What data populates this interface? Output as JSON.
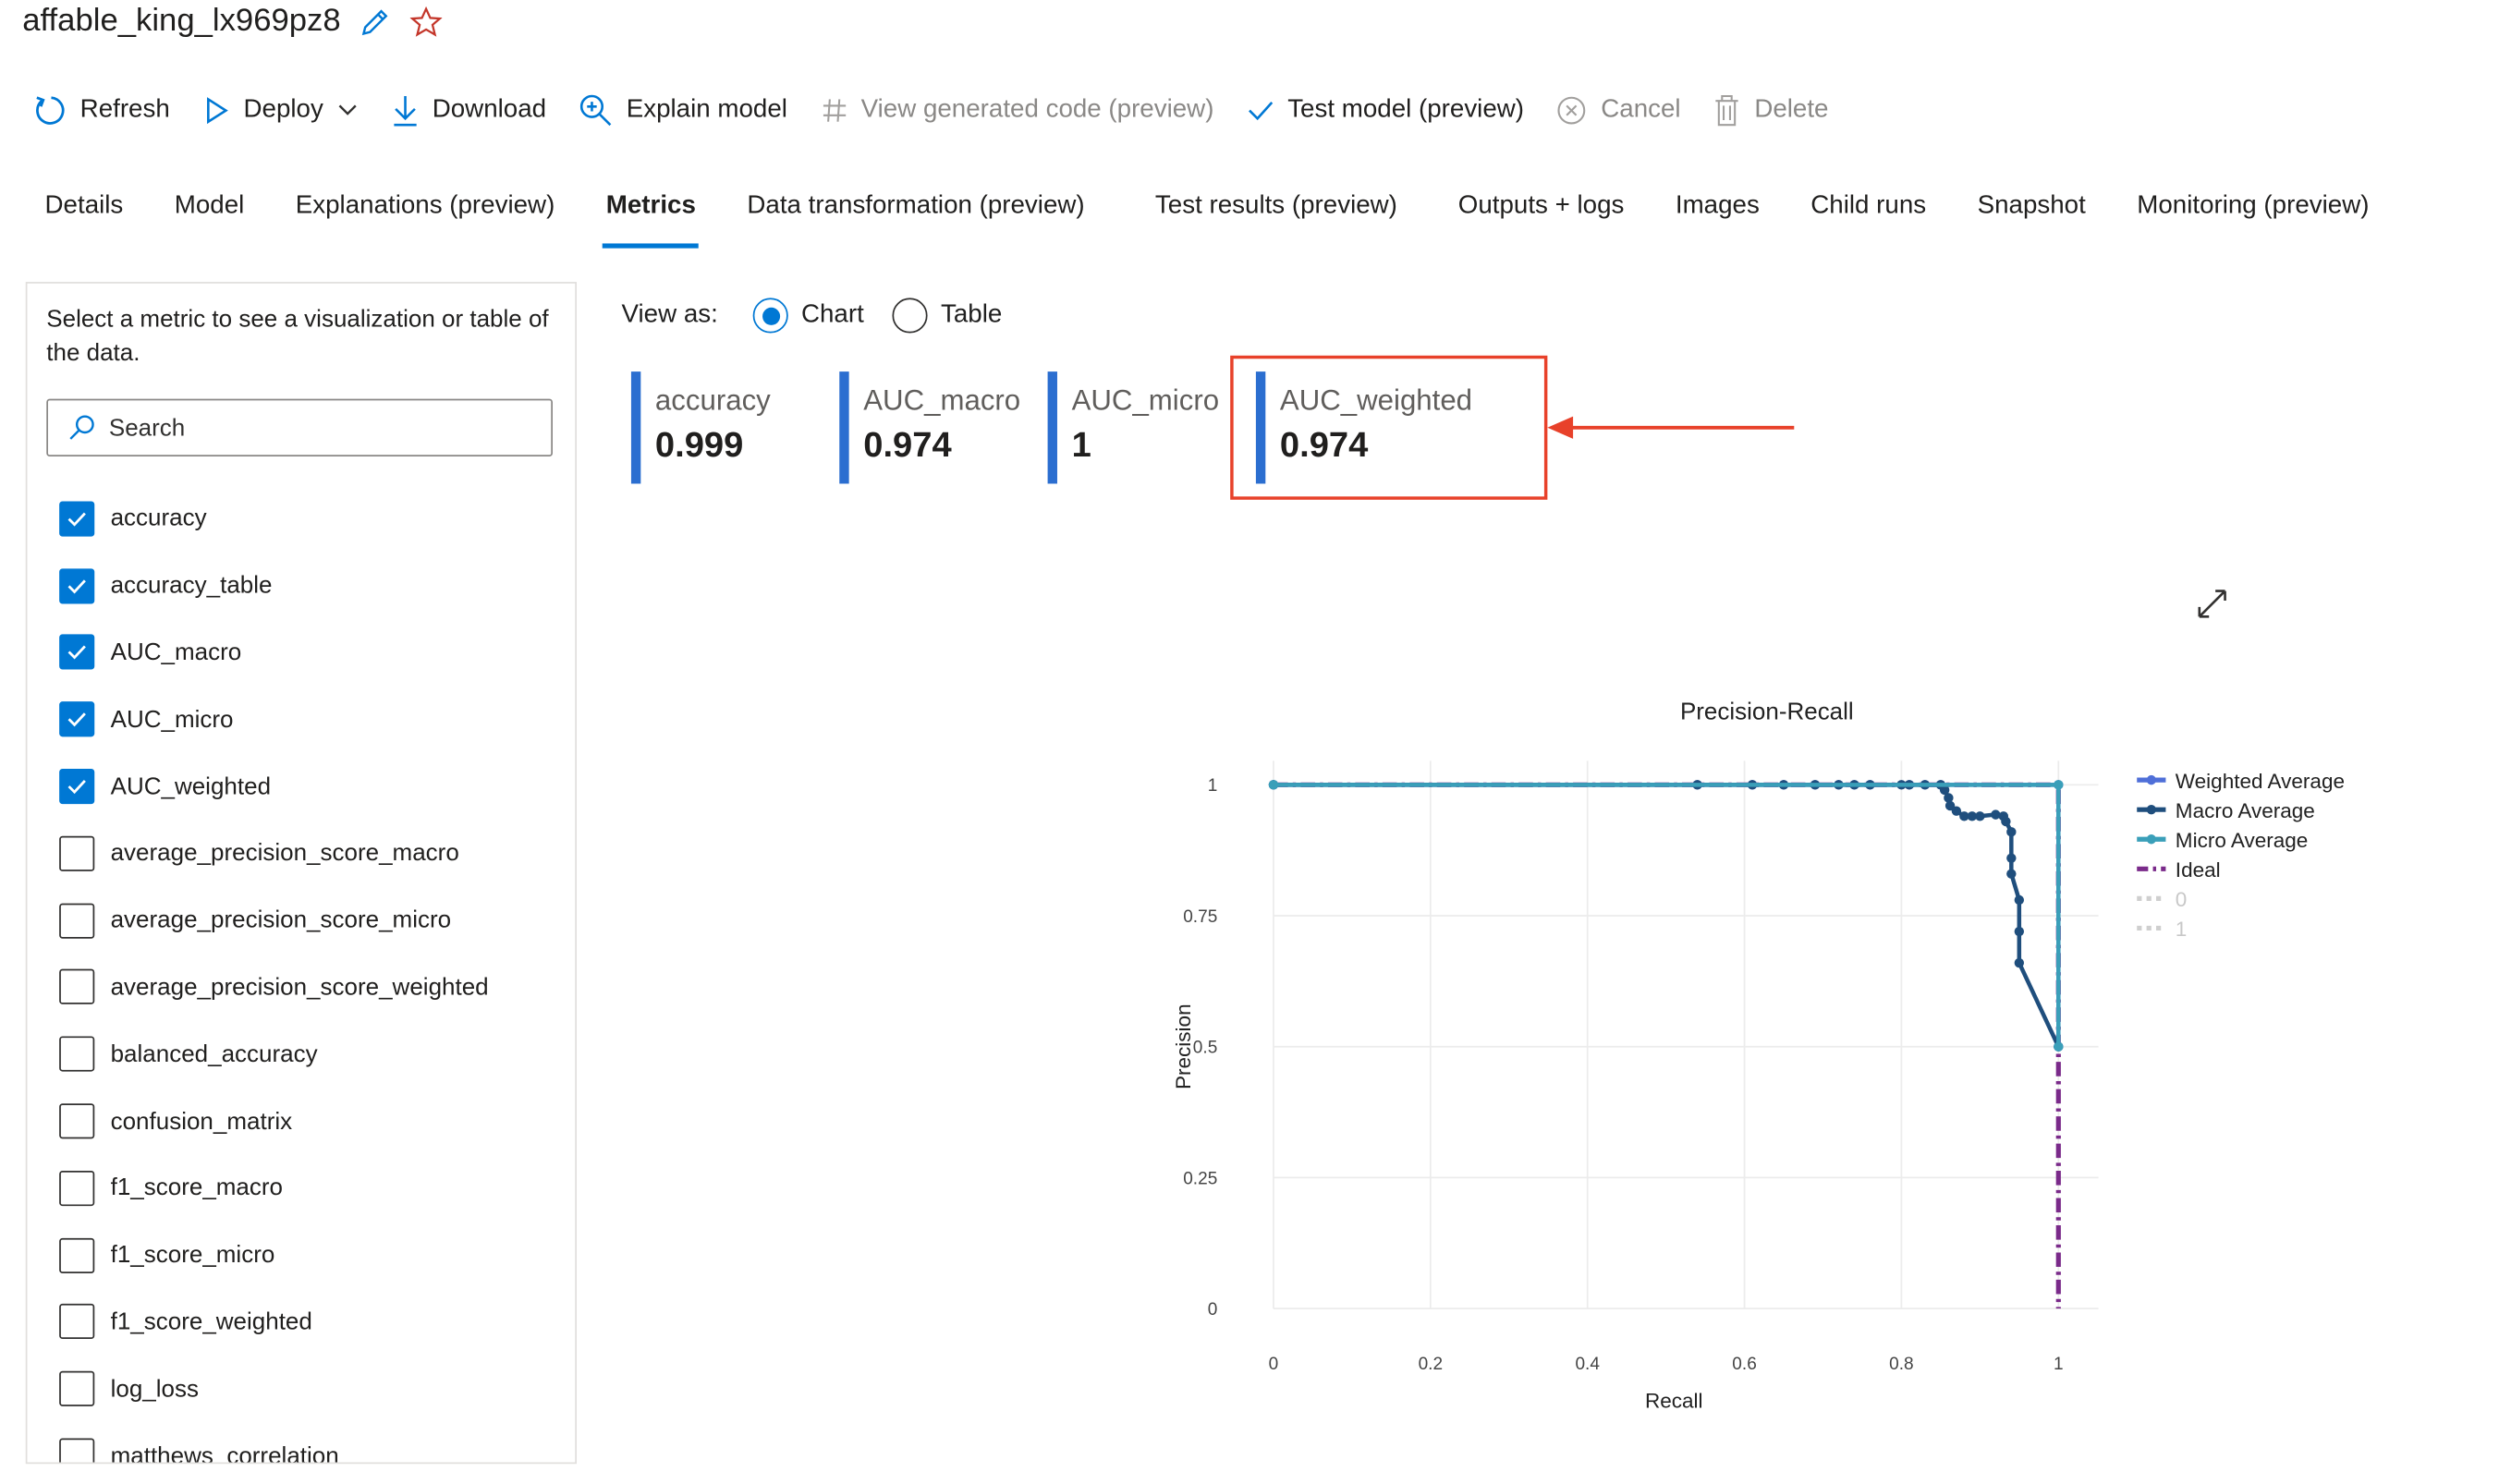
{
  "header": {
    "title": "affable_king_lx969pz8"
  },
  "toolbar": {
    "items": [
      {
        "label": "Refresh",
        "icon": "refresh-icon",
        "enabled": true
      },
      {
        "label": "Deploy",
        "icon": "play-icon",
        "enabled": true
      },
      {
        "label": "Download",
        "icon": "download-icon",
        "enabled": true
      },
      {
        "label": "Explain model",
        "icon": "zoom-icon",
        "enabled": true
      },
      {
        "label": "View generated code (preview)",
        "icon": "hash-icon",
        "enabled": false
      },
      {
        "label": "Test model (preview)",
        "icon": "check-icon",
        "enabled": true
      },
      {
        "label": "Cancel",
        "icon": "cancel-icon",
        "enabled": false
      },
      {
        "label": "Delete",
        "icon": "trash-icon",
        "enabled": false
      }
    ]
  },
  "tabs": [
    {
      "label": "Details"
    },
    {
      "label": "Model"
    },
    {
      "label": "Explanations (preview)"
    },
    {
      "label": "Metrics",
      "active": true
    },
    {
      "label": "Data transformation (preview)"
    },
    {
      "label": "Test results (preview)"
    },
    {
      "label": "Outputs + logs"
    },
    {
      "label": "Images"
    },
    {
      "label": "Child runs"
    },
    {
      "label": "Snapshot"
    },
    {
      "label": "Monitoring (preview)"
    }
  ],
  "sidebar": {
    "hint": "Select a metric to see a visualization or table of the data.",
    "search_placeholder": "Search",
    "metrics": [
      {
        "label": "accuracy",
        "checked": true
      },
      {
        "label": "accuracy_table",
        "checked": true
      },
      {
        "label": "AUC_macro",
        "checked": true
      },
      {
        "label": "AUC_micro",
        "checked": true
      },
      {
        "label": "AUC_weighted",
        "checked": true
      },
      {
        "label": "average_precision_score_macro",
        "checked": false
      },
      {
        "label": "average_precision_score_micro",
        "checked": false
      },
      {
        "label": "average_precision_score_weighted",
        "checked": false
      },
      {
        "label": "balanced_accuracy",
        "checked": false
      },
      {
        "label": "confusion_matrix",
        "checked": false
      },
      {
        "label": "f1_score_macro",
        "checked": false
      },
      {
        "label": "f1_score_micro",
        "checked": false
      },
      {
        "label": "f1_score_weighted",
        "checked": false
      },
      {
        "label": "log_loss",
        "checked": false
      },
      {
        "label": "matthews_correlation",
        "checked": false
      }
    ]
  },
  "view_as": {
    "label": "View as:",
    "options": [
      {
        "label": "Chart",
        "selected": true
      },
      {
        "label": "Table",
        "selected": false
      }
    ]
  },
  "metric_cards": [
    {
      "name": "accuracy",
      "value": "0.999"
    },
    {
      "name": "AUC_macro",
      "value": "0.974"
    },
    {
      "name": "AUC_micro",
      "value": "1"
    },
    {
      "name": "AUC_weighted",
      "value": "0.974",
      "highlighted": true
    }
  ],
  "colors": {
    "accent": "#0078d4",
    "highlight": "#e8412a",
    "card_bar": "#2b6ed0"
  },
  "chart_data": {
    "type": "line",
    "title": "Precision-Recall",
    "xlabel": "Recall",
    "ylabel": "Precision",
    "xlim": [
      0,
      1
    ],
    "ylim": [
      0,
      1
    ],
    "xticks": [
      "0",
      "0.2",
      "0.4",
      "0.6",
      "0.8",
      "1"
    ],
    "yticks": [
      "0",
      "0.25",
      "0.5",
      "0.75",
      "1"
    ],
    "grid": true,
    "legend": "right",
    "series": [
      {
        "name": "Weighted Average",
        "color": "#4f6fd8",
        "dash": "solid",
        "points": [
          [
            0,
            1
          ],
          [
            0.54,
            1
          ],
          [
            0.61,
            1
          ],
          [
            0.65,
            1
          ],
          [
            0.69,
            1
          ],
          [
            0.72,
            1
          ],
          [
            0.74,
            1
          ],
          [
            0.76,
            1
          ],
          [
            0.81,
            1
          ],
          [
            0.83,
            1
          ],
          [
            0.85,
            1
          ],
          [
            1,
            1
          ],
          [
            1,
            0.5
          ]
        ]
      },
      {
        "name": "Macro Average",
        "color": "#1f4e7d",
        "dash": "solid",
        "points": [
          [
            0,
            1
          ],
          [
            0.54,
            1
          ],
          [
            0.61,
            1
          ],
          [
            0.65,
            1
          ],
          [
            0.69,
            1
          ],
          [
            0.72,
            1
          ],
          [
            0.74,
            1
          ],
          [
            0.76,
            1
          ],
          [
            0.8,
            1
          ],
          [
            0.81,
            1
          ],
          [
            0.83,
            1
          ],
          [
            0.85,
            1
          ],
          [
            0.855,
            0.99
          ],
          [
            0.86,
            0.975
          ],
          [
            0.862,
            0.96
          ],
          [
            0.87,
            0.95
          ],
          [
            0.88,
            0.94
          ],
          [
            0.89,
            0.94
          ],
          [
            0.9,
            0.94
          ],
          [
            0.92,
            0.943
          ],
          [
            0.93,
            0.94
          ],
          [
            0.933,
            0.93
          ],
          [
            0.94,
            0.91
          ],
          [
            0.94,
            0.86
          ],
          [
            0.94,
            0.83
          ],
          [
            0.95,
            0.78
          ],
          [
            0.95,
            0.72
          ],
          [
            0.95,
            0.66
          ],
          [
            1,
            0.5
          ]
        ]
      },
      {
        "name": "Micro Average",
        "color": "#3a9fb9",
        "dash": "solid",
        "points": [
          [
            0,
            1
          ],
          [
            1,
            1
          ],
          [
            1,
            0.5
          ]
        ]
      },
      {
        "name": "Ideal",
        "color": "#7a2a8a",
        "dash": "dashdot",
        "points": [
          [
            0,
            1
          ],
          [
            1,
            1
          ],
          [
            1,
            0
          ]
        ]
      },
      {
        "name": "0",
        "color": "#cfcfcf",
        "dash": "dot",
        "points": []
      },
      {
        "name": "1",
        "color": "#cfcfcf",
        "dash": "dot",
        "points": []
      }
    ]
  }
}
